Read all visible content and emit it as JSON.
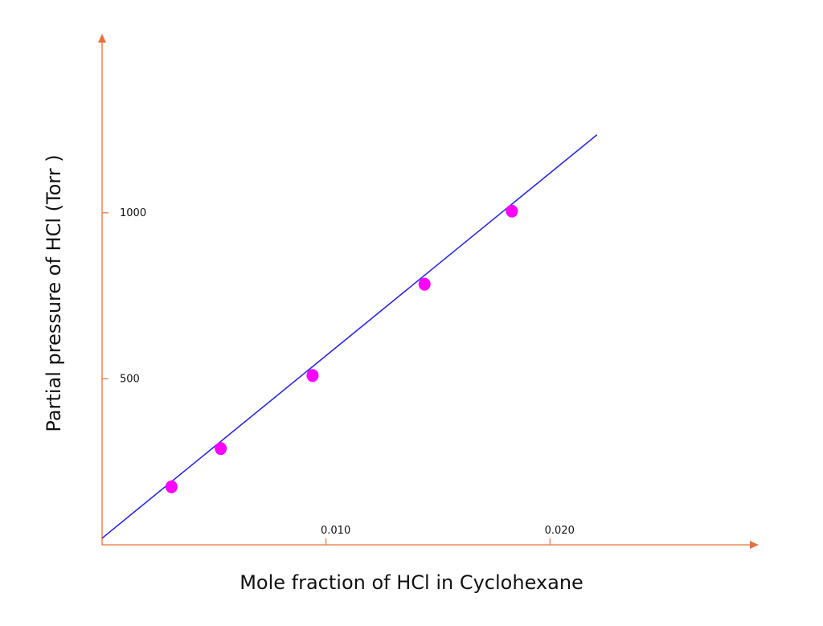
{
  "colors": {
    "axis": "#e8703a",
    "line": "#2a2adf",
    "point": "#ff00ff",
    "text": "#111111"
  },
  "chart_data": {
    "type": "scatter",
    "title": "",
    "xlabel": "Mole fraction of HCl in Cyclohexane",
    "ylabel": "Partial pressure of HCl  (Torr )",
    "xlim": [
      0,
      0.029
    ],
    "ylim": [
      0,
      1520
    ],
    "x_ticks": [
      {
        "value": 0.01,
        "label": "0.010"
      },
      {
        "value": 0.02,
        "label": "0.020"
      }
    ],
    "y_ticks": [
      {
        "value": 500,
        "label": "500"
      },
      {
        "value": 1000,
        "label": "1000"
      }
    ],
    "points": [
      {
        "x": 0.0031,
        "y": 175
      },
      {
        "x": 0.0053,
        "y": 290
      },
      {
        "x": 0.0094,
        "y": 510
      },
      {
        "x": 0.0144,
        "y": 785
      },
      {
        "x": 0.0183,
        "y": 1005
      }
    ],
    "fit_line": {
      "x": [
        0,
        0.0221
      ],
      "y": [
        20,
        1235
      ]
    },
    "grid": false,
    "legend": "none"
  }
}
